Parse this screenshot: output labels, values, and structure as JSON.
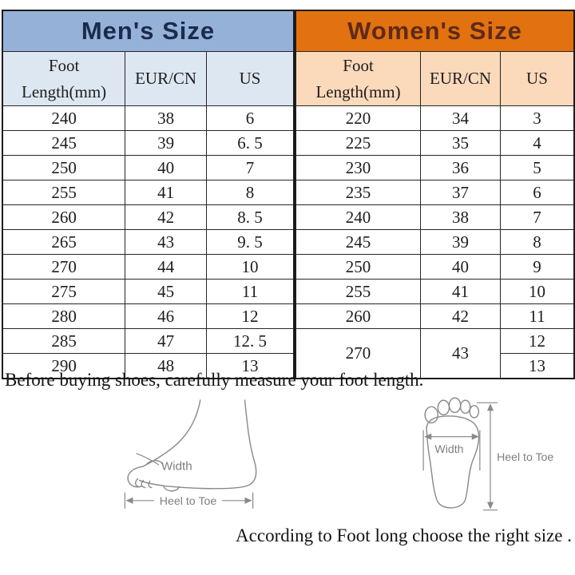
{
  "captions": {
    "top": "Before buying shoes, carefully measure your foot length.",
    "bottom": "According to Foot long choose the right size ."
  },
  "colors": {
    "men_header_bg": "#95b1d7",
    "men_header_text": "#1b2b4d",
    "men_subheader_bg": "#dde7f2",
    "women_header_bg": "#e2710f",
    "women_header_text": "#5f2a1a",
    "women_subheader_bg": "#fbd9bb",
    "table_border": "#1c1c1c",
    "body_text": "#1d1d1d",
    "diagram_stroke": "#8a8a8a"
  },
  "tables": {
    "men": {
      "title": "Men's Size",
      "columns": [
        "Foot Length(mm)",
        "EUR/CN",
        "US"
      ],
      "rows": [
        [
          "240",
          "38",
          "6"
        ],
        [
          "245",
          "39",
          "6. 5"
        ],
        [
          "250",
          "40",
          "7"
        ],
        [
          "255",
          "41",
          "8"
        ],
        [
          "260",
          "42",
          "8. 5"
        ],
        [
          "265",
          "43",
          "9. 5"
        ],
        [
          "270",
          "44",
          "10"
        ],
        [
          "275",
          "45",
          "11"
        ],
        [
          "280",
          "46",
          "12"
        ],
        [
          "285",
          "47",
          "12. 5"
        ],
        [
          "290",
          "48",
          "13"
        ]
      ]
    },
    "women": {
      "title": "Women's Size",
      "columns": [
        "Foot Length(mm)",
        "EUR/CN",
        "US"
      ],
      "rows": [
        [
          "220",
          "34",
          "3"
        ],
        [
          "225",
          "35",
          "4"
        ],
        [
          "230",
          "36",
          "5"
        ],
        [
          "235",
          "37",
          "6"
        ],
        [
          "240",
          "38",
          "7"
        ],
        [
          "245",
          "39",
          "8"
        ],
        [
          "250",
          "40",
          "9"
        ],
        [
          "255",
          "41",
          "10"
        ],
        [
          "260",
          "42",
          "11"
        ]
      ],
      "merged_row": {
        "foot_length": "270",
        "eur_cn": "43",
        "us_values": [
          "12",
          "13"
        ]
      }
    }
  },
  "diagrams": {
    "side_view": {
      "width_label": "Width",
      "heel_to_toe_label": "Heel to Toe"
    },
    "footprint": {
      "width_label": "Width",
      "heel_to_toe_label": "Heel to Toe"
    }
  }
}
